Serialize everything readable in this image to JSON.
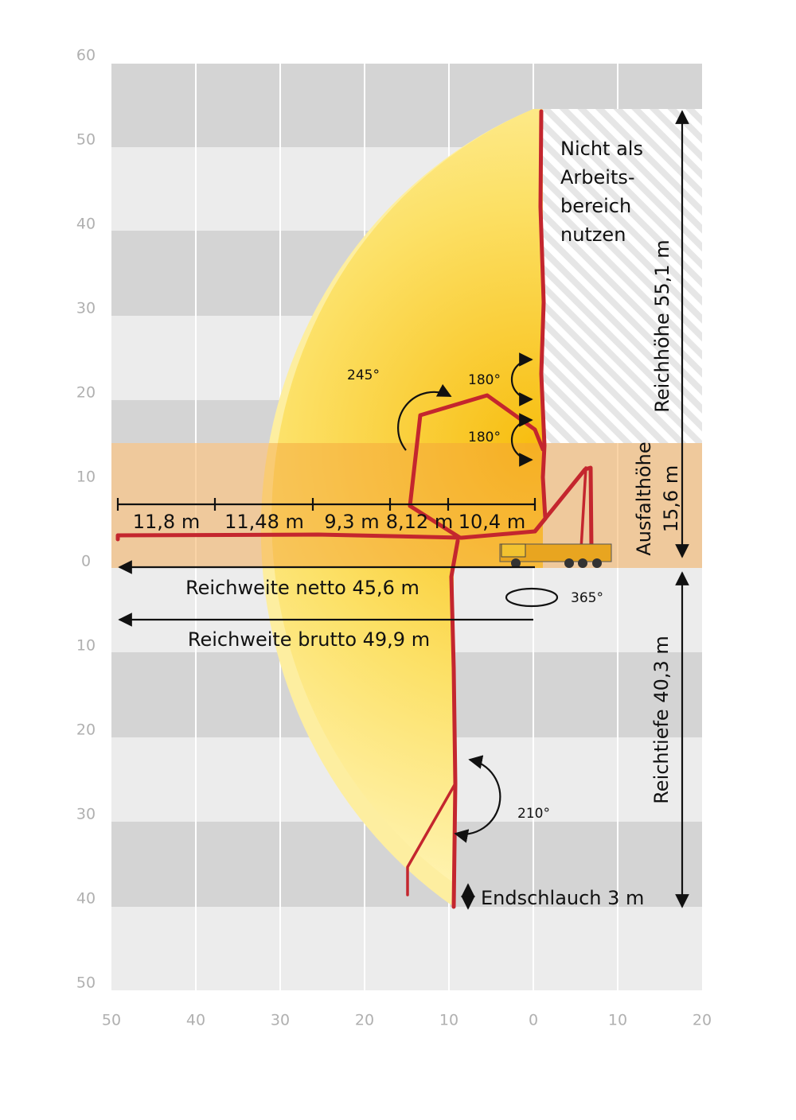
{
  "x_axis_labels": [
    "50",
    "40",
    "30",
    "20",
    "10",
    "0",
    "10",
    "20"
  ],
  "y_axis_labels": [
    "60",
    "50",
    "40",
    "30",
    "20",
    "10",
    "0",
    "10",
    "20",
    "30",
    "40",
    "50"
  ],
  "no_work_zone": [
    "Nicht als",
    "Arbeits-",
    "bereich",
    "nutzen"
  ],
  "reach_height": "Reichhöhe 55,1 m",
  "unfold_height": [
    "Ausfalthöhe",
    "15,6 m"
  ],
  "reach_depth": "Reichtiefe 40,3 m",
  "boom_sections": [
    "11,8 m",
    "11,48 m",
    "9,3 m",
    "8,12 m",
    "10,4 m"
  ],
  "reach_net": "Reichweite netto 45,6 m",
  "reach_gross": "Reichweite brutto 49,9 m",
  "angles": {
    "slew": "365°",
    "joint_a": "245°",
    "joint_b1": "180°",
    "joint_b2": "180°",
    "joint_c": "210°"
  },
  "end_hose": "Endschlauch 3 m"
}
